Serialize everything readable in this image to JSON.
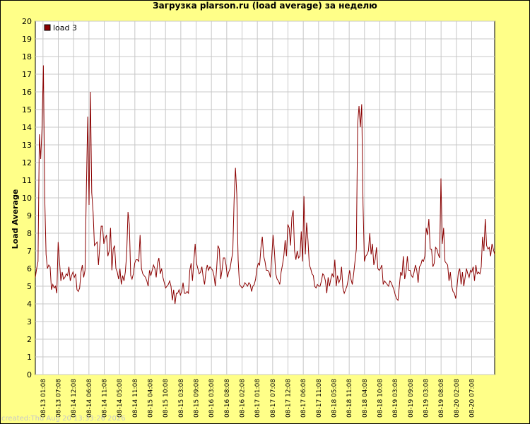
{
  "chart_data": {
    "type": "line",
    "title": "Загрузка plarson.ru (load average) за неделю",
    "xlabel": "",
    "ylabel": "Load Average",
    "ylim": [
      0,
      20
    ],
    "y_ticks": [
      0,
      1,
      2,
      3,
      4,
      5,
      6,
      7,
      8,
      9,
      10,
      11,
      12,
      13,
      14,
      15,
      16,
      17,
      18,
      19,
      20
    ],
    "x_ticks": [
      "08-13 01:08",
      "08-13 07:08",
      "08-14 12:08",
      "08-14 06:08",
      "08-14 11:08",
      "08-14 05:08",
      "08-14 11:08",
      "08-15 04:08",
      "08-15 10:08",
      "08-15 03:08",
      "08-15 09:08",
      "08-16 03:08",
      "08-16 08:08",
      "08-16 02:08",
      "08-17 01:08",
      "08-17 07:08",
      "08-17 12:08",
      "08-17 06:08",
      "08-17 11:08",
      "08-18 05:08",
      "08-18 11:08",
      "08-18 04:08",
      "08-18 10:08",
      "08-19 03:08",
      "08-19 09:08",
      "08-19 03:08",
      "08-19 08:08",
      "08-20 02:08",
      "08-20 07:08"
    ],
    "grid": true,
    "legend_position": "top-left",
    "series": [
      {
        "name": "load 3",
        "color": "#8b0000",
        "values": [
          5.5,
          6.0,
          6.4,
          13.6,
          12.2,
          14.0,
          17.5,
          10.0,
          6.8,
          6.0,
          6.2,
          6.1,
          4.8,
          5.1,
          4.9,
          5.0,
          4.6,
          7.5,
          6.4,
          5.3,
          5.8,
          5.4,
          5.5,
          5.7,
          5.6,
          6.1,
          5.3,
          5.6,
          5.8,
          5.5,
          5.7,
          4.8,
          4.7,
          4.9,
          5.8,
          6.2,
          5.5,
          5.9,
          10.5,
          14.6,
          9.6,
          16.0,
          10.3,
          9.2,
          7.3,
          7.4,
          7.5,
          6.2,
          7.3,
          8.4,
          8.4,
          7.4,
          7.7,
          7.9,
          6.7,
          7.0,
          8.3,
          5.9,
          7.1,
          7.3,
          6.0,
          5.8,
          5.4,
          6.0,
          5.1,
          5.6,
          5.3,
          5.8,
          6.8,
          9.2,
          8.5,
          5.6,
          5.4,
          5.7,
          6.3,
          6.5,
          6.5,
          6.4,
          7.9,
          6.0,
          5.7,
          5.6,
          5.5,
          5.3,
          5.0,
          5.9,
          5.6,
          5.9,
          6.2,
          6.0,
          5.5,
          6.3,
          6.6,
          5.7,
          6.0,
          5.5,
          5.2,
          4.9,
          5.0,
          5.1,
          5.3,
          5.0,
          4.2,
          4.8,
          4.0,
          4.6,
          4.6,
          4.8,
          4.5,
          4.7,
          5.2,
          4.6,
          4.6,
          4.7,
          4.6,
          5.9,
          6.3,
          5.3,
          6.4,
          7.4,
          6.3,
          6.0,
          5.7,
          5.8,
          6.1,
          5.5,
          5.1,
          5.8,
          6.2,
          5.9,
          6.1,
          6.0,
          5.9,
          5.6,
          5.0,
          6.0,
          7.3,
          7.1,
          5.4,
          5.9,
          6.6,
          6.6,
          6.2,
          5.5,
          5.8,
          6.0,
          6.5,
          6.9,
          9.9,
          11.7,
          10.2,
          6.5,
          5.1,
          5.0,
          4.9,
          5.0,
          5.2,
          5.1,
          5.0,
          5.2,
          5.1,
          4.7,
          5.0,
          5.1,
          5.4,
          6.0,
          6.3,
          6.2,
          7.2,
          7.8,
          6.7,
          6.4,
          5.9,
          5.9,
          5.8,
          5.5,
          6.6,
          7.9,
          7.0,
          5.7,
          5.4,
          5.3,
          5.1,
          5.8,
          6.2,
          6.7,
          7.6,
          6.7,
          8.5,
          8.3,
          7.3,
          8.9,
          9.3,
          7.0,
          6.5,
          7.0,
          6.6,
          6.7,
          8.1,
          6.4,
          10.1,
          6.8,
          8.6,
          7.6,
          6.2,
          6.0,
          5.7,
          5.6,
          5.0,
          4.9,
          5.1,
          5.0,
          5.0,
          5.3,
          5.7,
          5.6,
          5.3,
          4.6,
          5.5,
          5.0,
          5.4,
          5.7,
          5.5,
          6.5,
          5.0,
          5.6,
          5.2,
          5.4,
          6.1,
          4.9,
          4.6,
          4.8,
          5.0,
          5.4,
          5.9,
          5.4,
          5.1,
          5.7,
          6.4,
          7.1,
          14.2,
          15.2,
          14.0,
          15.3,
          9.6,
          6.4,
          6.7,
          6.8,
          7.0,
          8.0,
          6.8,
          7.4,
          6.2,
          6.5,
          7.2,
          6.0,
          5.9,
          6.0,
          6.2,
          5.1,
          5.3,
          5.2,
          5.1,
          5.0,
          5.3,
          5.2,
          5.0,
          4.8,
          4.5,
          4.3,
          4.2,
          5.0,
          5.8,
          5.6,
          6.7,
          5.4,
          5.8,
          6.7,
          5.9,
          5.9,
          5.6,
          5.5,
          5.8,
          6.2,
          5.9,
          5.2,
          6.1,
          6.2,
          6.5,
          6.4,
          6.7,
          8.3,
          7.9,
          8.8,
          7.1,
          7.1,
          6.1,
          6.3,
          7.2,
          7.1,
          6.8,
          6.6,
          11.1,
          7.4,
          8.3,
          6.4,
          6.3,
          6.2,
          5.3,
          5.8,
          5.0,
          4.7,
          4.6,
          4.3,
          5.0,
          5.8,
          6.0,
          5.1,
          5.8,
          5.0,
          5.5,
          6.0,
          5.7,
          5.5,
          5.9,
          5.8,
          6.1,
          5.3,
          6.2,
          5.7,
          5.8,
          5.7,
          6.1,
          7.8,
          7.0,
          8.8,
          7.3,
          7.1,
          7.2,
          6.7,
          7.4,
          7.1,
          6.8
        ]
      }
    ]
  },
  "footer_text": "created:Thu Aug 20 13:33:26 2026"
}
